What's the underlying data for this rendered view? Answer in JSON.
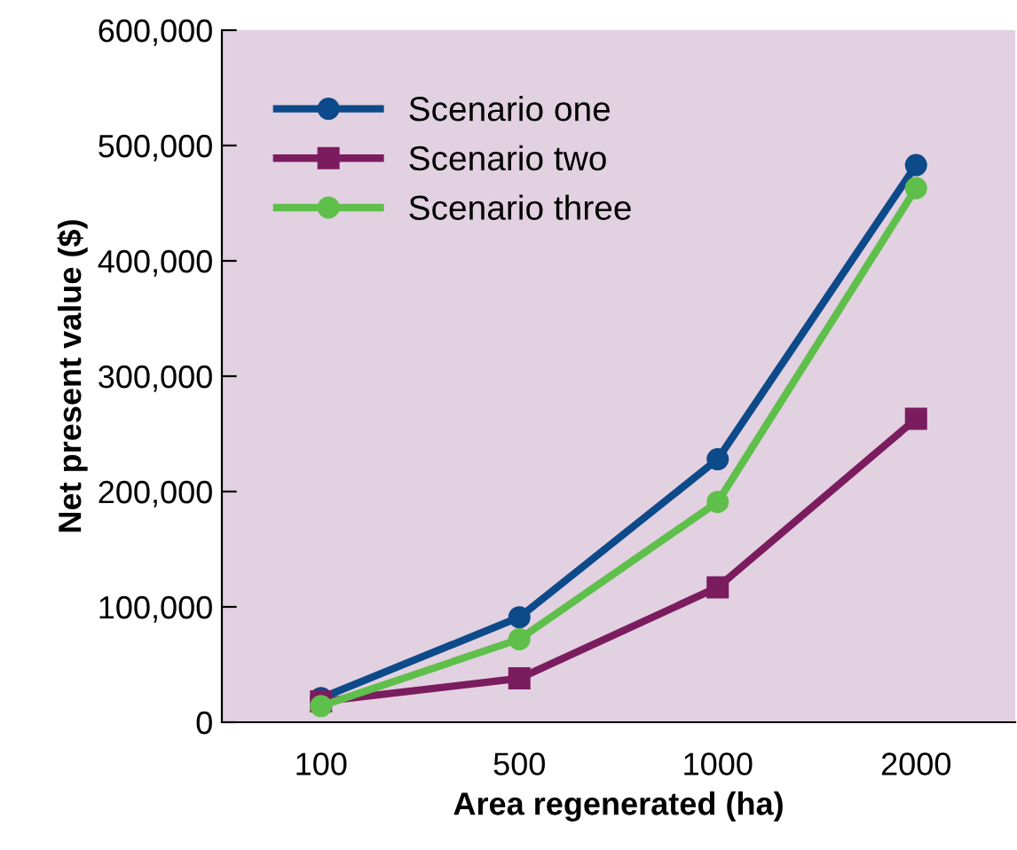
{
  "chart_data": {
    "type": "line",
    "xlabel": "Area regenerated (ha)",
    "ylabel": "Net present value ($)",
    "categories": [
      "100",
      "500",
      "1000",
      "2000"
    ],
    "series": [
      {
        "name": "Scenario one",
        "color": "#0d4a8a",
        "marker": "circle",
        "values": [
          21000,
          91000,
          228000,
          483000
        ]
      },
      {
        "name": "Scenario two",
        "color": "#7b1c5f",
        "marker": "square",
        "values": [
          18000,
          38000,
          117000,
          263000
        ]
      },
      {
        "name": "Scenario three",
        "color": "#5fbf4b",
        "marker": "circle",
        "values": [
          14000,
          72000,
          191000,
          463000
        ]
      }
    ],
    "ylim": [
      0,
      600000
    ],
    "yticks": [
      {
        "value": 0,
        "label": "0"
      },
      {
        "value": 100000,
        "label": "100,000"
      },
      {
        "value": 200000,
        "label": "200,000"
      },
      {
        "value": 300000,
        "label": "300,000"
      },
      {
        "value": 400000,
        "label": "400,000"
      },
      {
        "value": 500000,
        "label": "500,000"
      },
      {
        "value": 600000,
        "label": "600,000"
      }
    ],
    "grid": false,
    "legend": "top left",
    "line_style": "solid"
  }
}
